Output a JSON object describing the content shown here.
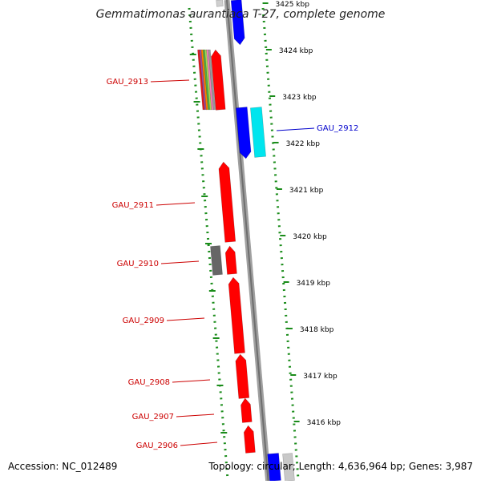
{
  "title": "Gemmatimonas aurantiaca T-27, complete genome",
  "accession": "Accession: NC_012489",
  "topology": "Topology: circular; Length: 4,636,964 bp; Genes: 3,987",
  "colors": {
    "forward_gene": "#ff0000",
    "reverse_gene": "#0000ff",
    "cyan_gene": "#00e5ee",
    "gray_gene": "#666666",
    "backbone": "#808080",
    "tick_green": "#1a8c1a"
  },
  "ticks": [
    {
      "label": "3425 kbp"
    },
    {
      "label": "3424 kbp"
    },
    {
      "label": "3423 kbp"
    },
    {
      "label": "3422 kbp"
    },
    {
      "label": "3421 kbp"
    },
    {
      "label": "3420 kbp"
    },
    {
      "label": "3419 kbp"
    },
    {
      "label": "3418 kbp"
    },
    {
      "label": "3417 kbp"
    },
    {
      "label": "3416 kbp"
    }
  ],
  "gene_labels": [
    {
      "name": "GAU_2913",
      "color": "#cc0000"
    },
    {
      "name": "GAU_2912",
      "color": "#0000cc"
    },
    {
      "name": "GAU_2911",
      "color": "#cc0000"
    },
    {
      "name": "GAU_2910",
      "color": "#cc0000"
    },
    {
      "name": "GAU_2909",
      "color": "#cc0000"
    },
    {
      "name": "GAU_2908",
      "color": "#cc0000"
    },
    {
      "name": "GAU_2907",
      "color": "#cc0000"
    },
    {
      "name": "GAU_2906",
      "color": "#cc0000"
    }
  ]
}
